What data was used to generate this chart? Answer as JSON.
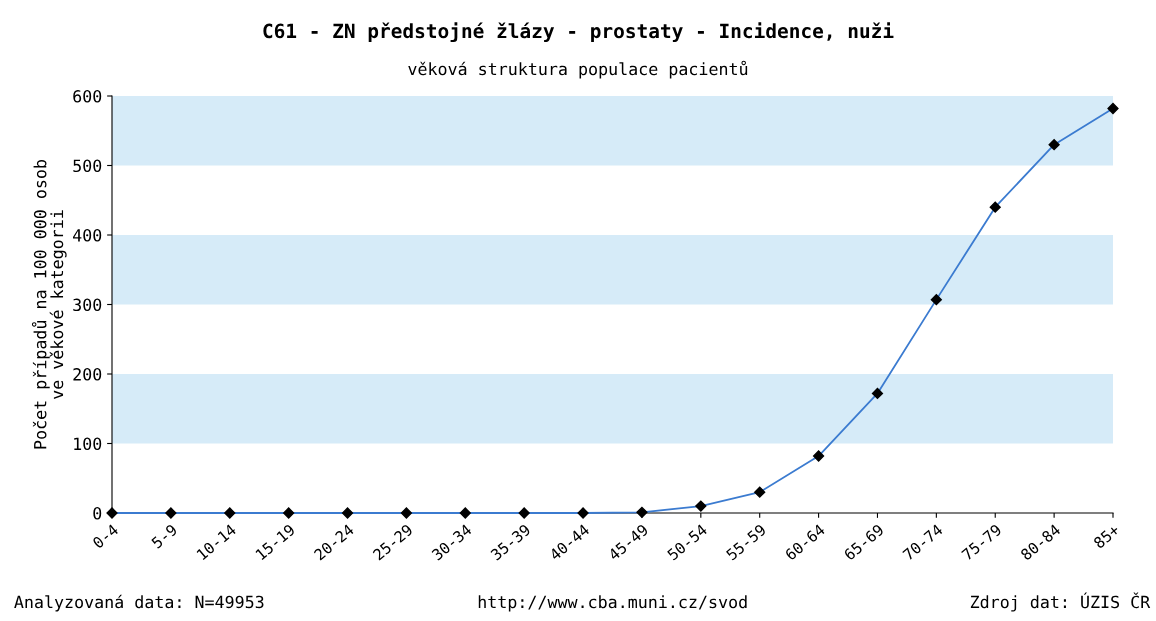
{
  "chart_data": {
    "type": "line",
    "title": "C61 - ZN předstojné žlázy - prostaty - Incidence, nuži",
    "subtitle": "věková struktura populace pacientů",
    "ylabel": "Počet případů na 100 000 osob\nve věkové kategorii",
    "categories": [
      "0-4",
      "5-9",
      "10-14",
      "15-19",
      "20-24",
      "25-29",
      "30-34",
      "35-39",
      "40-44",
      "45-49",
      "50-54",
      "55-59",
      "60-64",
      "65-69",
      "70-74",
      "75-79",
      "80-84",
      "85+"
    ],
    "series": [
      {
        "color": "#3b7bd0",
        "values": [
          0,
          0,
          0,
          0,
          0,
          0,
          0,
          0,
          0,
          1,
          10,
          30,
          82,
          172,
          307,
          440,
          530,
          582
        ]
      }
    ],
    "ylim": [
      0,
      600
    ],
    "yticks": [
      0,
      100,
      200,
      300,
      400,
      500,
      600
    ],
    "grid": false,
    "marker": "diamond",
    "line_style": "solid",
    "legend": false,
    "bands": [
      {
        "axis": "y",
        "from": 100,
        "to": 200,
        "color": "#d6ebf8"
      },
      {
        "axis": "y",
        "from": 300,
        "to": 400,
        "color": "#d6ebf8"
      },
      {
        "axis": "y",
        "from": 500,
        "to": 600,
        "color": "#d6ebf8"
      }
    ],
    "annotations": [
      "Analyzovaná data: N=49953",
      "http://www.cba.muni.cz/svod",
      "Zdroj dat: ÚZIS ČR"
    ]
  }
}
